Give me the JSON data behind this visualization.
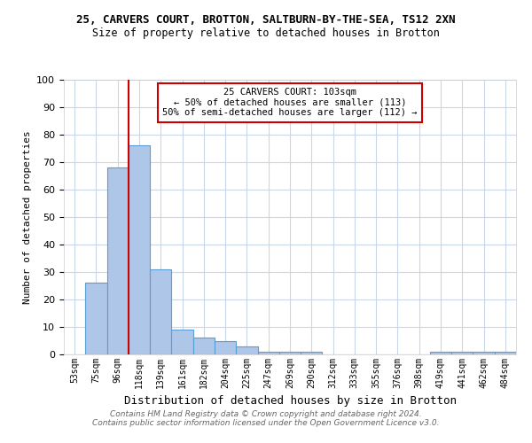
{
  "title1": "25, CARVERS COURT, BROTTON, SALTBURN-BY-THE-SEA, TS12 2XN",
  "title2": "Size of property relative to detached houses in Brotton",
  "xlabel": "Distribution of detached houses by size in Brotton",
  "ylabel": "Number of detached properties",
  "categories": [
    "53sqm",
    "75sqm",
    "96sqm",
    "118sqm",
    "139sqm",
    "161sqm",
    "182sqm",
    "204sqm",
    "225sqm",
    "247sqm",
    "269sqm",
    "290sqm",
    "312sqm",
    "333sqm",
    "355sqm",
    "376sqm",
    "398sqm",
    "419sqm",
    "441sqm",
    "462sqm",
    "484sqm"
  ],
  "values": [
    0,
    26,
    68,
    76,
    31,
    9,
    6,
    5,
    3,
    1,
    1,
    1,
    0,
    0,
    0,
    0,
    0,
    1,
    1,
    1,
    1
  ],
  "bar_color": "#aec6e8",
  "bar_edgecolor": "#5a9fd4",
  "ylim": [
    0,
    100
  ],
  "yticks": [
    0,
    10,
    20,
    30,
    40,
    50,
    60,
    70,
    80,
    90,
    100
  ],
  "red_line_x": 2.5,
  "annotation_line1": "25 CARVERS COURT: 103sqm",
  "annotation_line2": "← 50% of detached houses are smaller (113)",
  "annotation_line3": "50% of semi-detached houses are larger (112) →",
  "annotation_box_color": "#ffffff",
  "annotation_box_edgecolor": "#cc0000",
  "footnote": "Contains HM Land Registry data © Crown copyright and database right 2024.\nContains public sector information licensed under the Open Government Licence v3.0.",
  "red_line_color": "#cc0000",
  "background_color": "#ffffff",
  "grid_color": "#c8d8e8"
}
